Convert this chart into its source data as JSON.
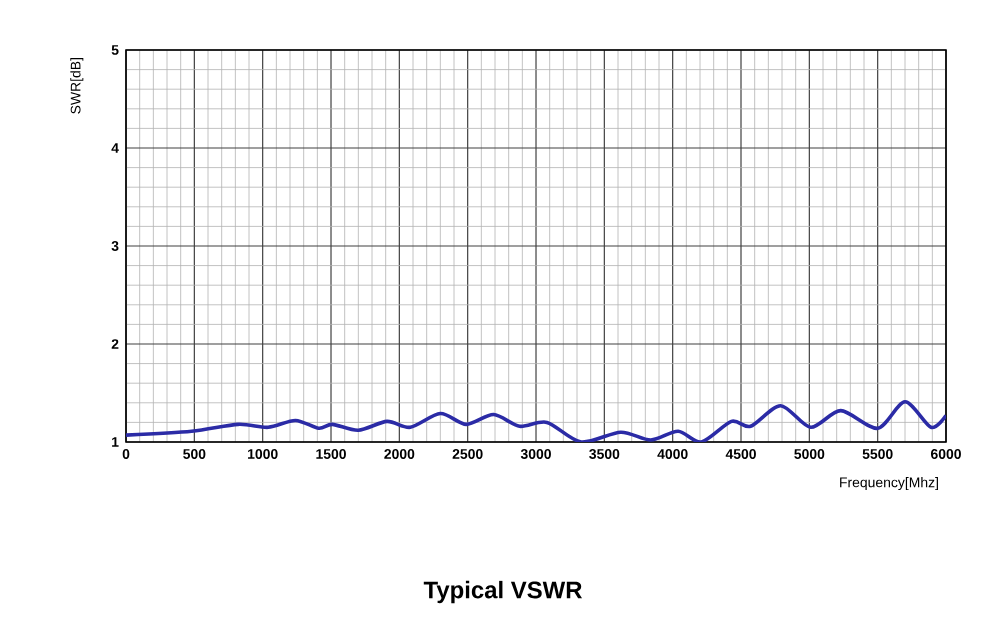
{
  "chart_data": {
    "type": "line",
    "title": "Typical VSWR",
    "xlabel": "Frequency[Mhz]",
    "ylabel": "SWR[dB]",
    "x": [
      0,
      480,
      820,
      1040,
      1240,
      1410,
      1510,
      1700,
      1910,
      2080,
      2300,
      2490,
      2690,
      2880,
      3080,
      3330,
      3620,
      3840,
      4040,
      4210,
      4430,
      4570,
      4790,
      5010,
      5230,
      5500,
      5700,
      5890,
      6000
    ],
    "series": [
      {
        "color": "#2b2ba6",
        "values": [
          1.07,
          1.11,
          1.18,
          1.15,
          1.22,
          1.14,
          1.18,
          1.12,
          1.21,
          1.15,
          1.29,
          1.18,
          1.28,
          1.16,
          1.2,
          1.0,
          1.1,
          1.02,
          1.11,
          1.0,
          1.21,
          1.16,
          1.37,
          1.15,
          1.32,
          1.14,
          1.41,
          1.15,
          1.27
        ]
      }
    ],
    "xlim": [
      0,
      6000
    ],
    "ylim": [
      1,
      5
    ],
    "xticks": [
      0,
      500,
      1000,
      1500,
      2000,
      2500,
      3000,
      3500,
      4000,
      4500,
      5000,
      5500,
      6000
    ],
    "yticks": [
      1,
      2,
      3,
      4,
      5
    ],
    "grid": true,
    "legend": false,
    "marker": "none",
    "line_style": "solid"
  }
}
